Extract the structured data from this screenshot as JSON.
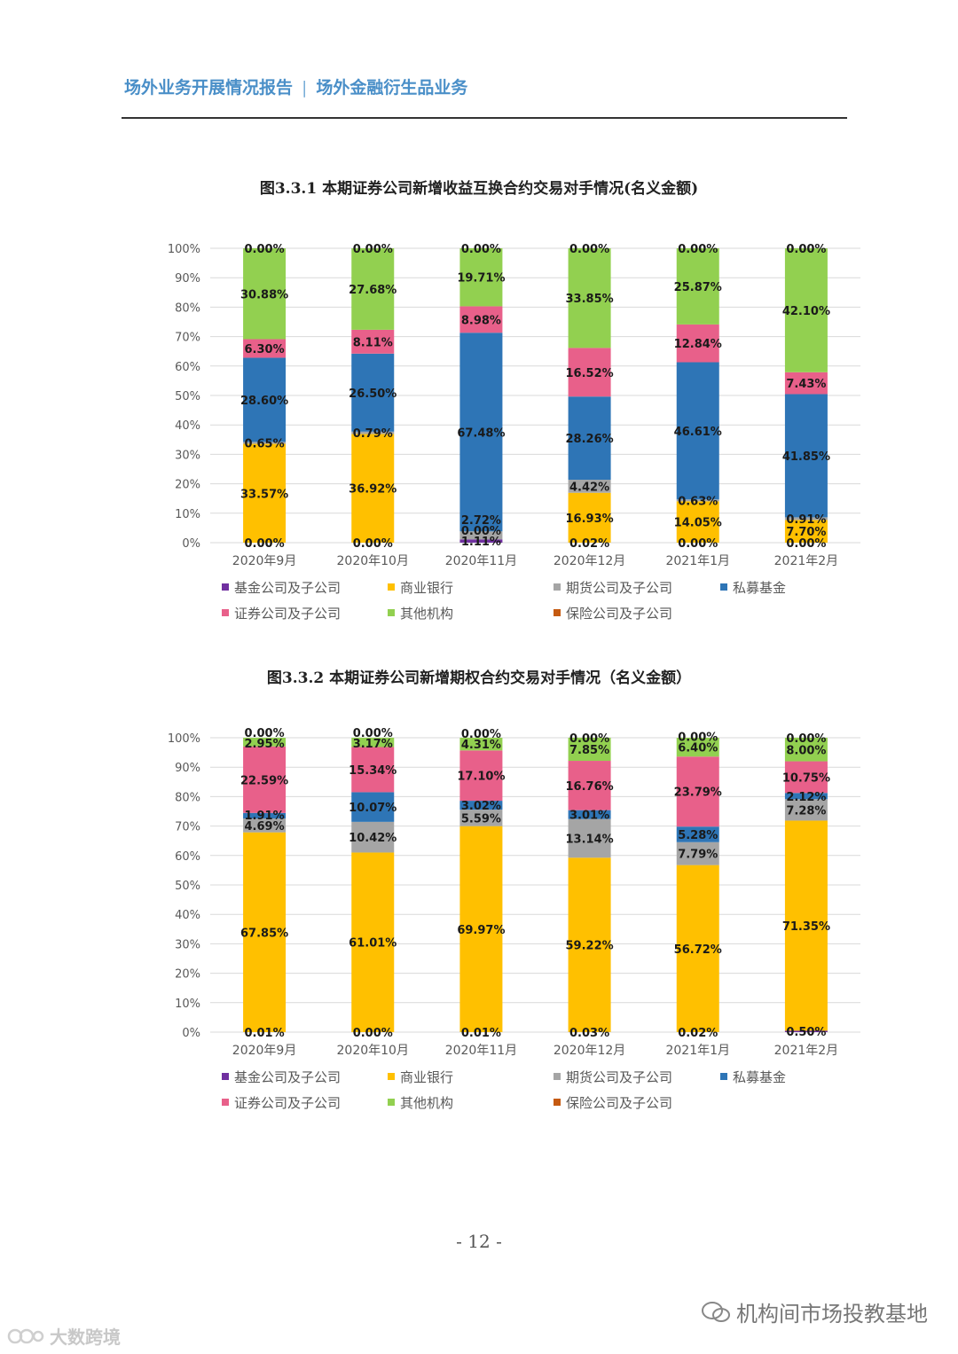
{
  "header": {
    "left": "场外业务开展情况报告",
    "separator": "|",
    "right": "场外金融衍生品业务"
  },
  "page_number": "- 12 -",
  "watermark": {
    "right_text": "机构间市场投教基地",
    "left_text": "大数跨境"
  },
  "colors": {
    "基金公司及子公司": "#7030a0",
    "商业银行": "#ffc000",
    "期货公司及子公司": "#a5a5a5",
    "私募基金": "#2e75b6",
    "证券公司及子公司": "#e8608a",
    "其他机构": "#92d050",
    "保险公司及子公司": "#c55a11",
    "grid": "#d9d9d9"
  },
  "chart_data": [
    {
      "type": "bar",
      "stacked": true,
      "title": "图3.3.1 本期证券公司新增收益互换合约交易对手情况(名义金额)",
      "categories": [
        "2020年9月",
        "2020年10月",
        "2020年11月",
        "2020年12月",
        "2021年1月",
        "2021年2月"
      ],
      "y_ticks": [
        "0%",
        "10%",
        "20%",
        "30%",
        "40%",
        "50%",
        "60%",
        "70%",
        "80%",
        "90%",
        "100%"
      ],
      "ylim": [
        0,
        100
      ],
      "grid": true,
      "legend_position": "bottom",
      "legend": [
        "基金公司及子公司",
        "商业银行",
        "期货公司及子公司",
        "私募基金",
        "证券公司及子公司",
        "其他机构",
        "保险公司及子公司"
      ],
      "series": [
        {
          "name": "基金公司及子公司",
          "values": [
            0.0,
            0.0,
            1.11,
            0.02,
            0.0,
            0.0
          ],
          "labels": [
            "0.00%",
            "0.00%",
            "1.11%",
            "0.02%",
            "0.00%",
            "0.00%"
          ]
        },
        {
          "name": "商业银行",
          "values": [
            33.57,
            36.92,
            0.0,
            16.93,
            14.05,
            7.7
          ],
          "labels": [
            "33.57%",
            "36.92%",
            "0.00%",
            "16.93%",
            "14.05%",
            "7.70%"
          ]
        },
        {
          "name": "期货公司及子公司",
          "values": [
            0.65,
            0.79,
            2.72,
            4.42,
            0.63,
            0.91
          ],
          "labels": [
            "0.65%",
            "0.79%",
            "2.72%",
            "4.42%",
            "0.63%",
            "0.91%"
          ]
        },
        {
          "name": "私募基金",
          "values": [
            28.6,
            26.5,
            67.48,
            28.26,
            46.61,
            41.85
          ],
          "labels": [
            "28.60%",
            "26.50%",
            "67.48%",
            "28.26%",
            "46.61%",
            "41.85%"
          ]
        },
        {
          "name": "证券公司及子公司",
          "values": [
            6.3,
            8.11,
            8.98,
            16.52,
            12.84,
            7.43
          ],
          "labels": [
            "6.30%",
            "8.11%",
            "8.98%",
            "16.52%",
            "12.84%",
            "7.43%"
          ]
        },
        {
          "name": "其他机构",
          "values": [
            30.88,
            27.68,
            19.71,
            33.85,
            25.87,
            42.1
          ],
          "labels": [
            "30.88%",
            "27.68%",
            "19.71%",
            "33.85%",
            "25.87%",
            "42.10%"
          ]
        },
        {
          "name": "保险公司及子公司",
          "values": [
            0.0,
            0.0,
            0.0,
            0.0,
            0.0,
            0.0
          ],
          "labels": [
            "0.00%",
            "0.00%",
            "0.00%",
            "0.00%",
            "0.00%",
            "0.00%"
          ]
        }
      ]
    },
    {
      "type": "bar",
      "stacked": true,
      "title": "图3.3.2 本期证券公司新增期权合约交易对手情况（名义金额）",
      "categories": [
        "2020年9月",
        "2020年10月",
        "2020年11月",
        "2020年12月",
        "2021年1月",
        "2021年2月"
      ],
      "y_ticks": [
        "0%",
        "10%",
        "20%",
        "30%",
        "40%",
        "50%",
        "60%",
        "70%",
        "80%",
        "90%",
        "100%"
      ],
      "ylim": [
        0,
        100
      ],
      "grid": true,
      "legend_position": "bottom",
      "legend": [
        "基金公司及子公司",
        "商业银行",
        "期货公司及子公司",
        "私募基金",
        "证券公司及子公司",
        "其他机构",
        "保险公司及子公司"
      ],
      "series": [
        {
          "name": "基金公司及子公司",
          "values": [
            0.01,
            0.0,
            0.01,
            0.03,
            0.02,
            0.5
          ],
          "labels": [
            "0.01%",
            "0.00%",
            "0.01%",
            "0.03%",
            "0.02%",
            "0.50%"
          ]
        },
        {
          "name": "商业银行",
          "values": [
            67.85,
            61.01,
            69.97,
            59.22,
            56.72,
            71.35
          ],
          "labels": [
            "67.85%",
            "61.01%",
            "69.97%",
            "59.22%",
            "56.72%",
            "71.35%"
          ]
        },
        {
          "name": "期货公司及子公司",
          "values": [
            4.69,
            10.42,
            5.59,
            13.14,
            7.79,
            7.28
          ],
          "labels": [
            "4.69%",
            "10.42%",
            "5.59%",
            "13.14%",
            "7.79%",
            "7.28%"
          ]
        },
        {
          "name": "私募基金",
          "values": [
            1.91,
            10.07,
            3.02,
            3.01,
            5.28,
            2.12
          ],
          "labels": [
            "1.91%",
            "10.07%",
            "3.02%",
            "3.01%",
            "5.28%",
            "2.12%"
          ]
        },
        {
          "name": "证券公司及子公司",
          "values": [
            22.59,
            15.34,
            17.1,
            16.76,
            23.79,
            10.75
          ],
          "labels": [
            "22.59%",
            "15.34%",
            "17.10%",
            "16.76%",
            "23.79%",
            "10.75%"
          ]
        },
        {
          "name": "其他机构",
          "values": [
            2.95,
            3.17,
            4.31,
            7.85,
            6.4,
            8.0
          ],
          "labels": [
            "2.95%",
            "3.17%",
            "4.31%",
            "7.85%",
            "6.40%",
            "8.00%"
          ]
        },
        {
          "name": "保险公司及子公司",
          "values": [
            0.0,
            0.0,
            0.0,
            0.0,
            0.0,
            0.0
          ],
          "labels": [
            "0.00%",
            "0.00%",
            "0.00%",
            "0.00%",
            "0.00%",
            "0.00%"
          ]
        }
      ]
    }
  ]
}
